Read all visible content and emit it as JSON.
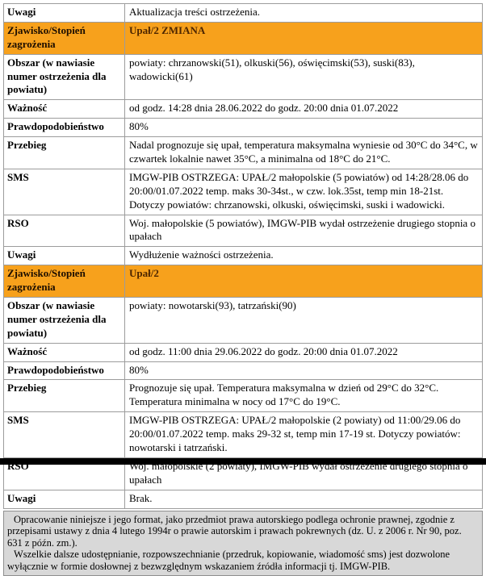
{
  "table": {
    "rows": [
      {
        "style": "normal",
        "label": "Uwagi",
        "value": "Aktualizacja treści ostrzeżenia."
      },
      {
        "style": "alert",
        "label": "Zjawisko/Stopień zagrożenia",
        "value": "Upał/2 ZMIANA"
      },
      {
        "style": "normal",
        "label": "Obszar (w nawiasie numer ostrzeżenia dla powiatu)",
        "value": "powiaty: chrzanowski(51), olkuski(56), oświęcimski(53), suski(83), wadowicki(61)"
      },
      {
        "style": "normal",
        "label": "Ważność",
        "value": "od godz. 14:28 dnia 28.06.2022 do godz. 20:00 dnia 01.07.2022"
      },
      {
        "style": "normal",
        "label": "Prawdopodobieństwo",
        "value": "80%"
      },
      {
        "style": "normal",
        "label": "Przebieg",
        "value": "Nadal prognozuje się upał, temperatura maksymalna wyniesie od 30°C do 34°C, w czwartek lokalnie nawet 35°C, a minimalna od 18°C do 21°C."
      },
      {
        "style": "normal",
        "label": "SMS",
        "value": "IMGW-PIB OSTRZEGA: UPAŁ/2 małopolskie (5 powiatów) od 14:28/28.06 do 20:00/01.07.2022 temp. maks 30-34st., w czw. lok.35st, temp min 18-21st. Dotyczy powiatów: chrzanowski, olkuski, oświęcimski, suski i wadowicki."
      },
      {
        "style": "normal",
        "label": "RSO",
        "value": "Woj. małopolskie (5 powiatów), IMGW-PIB wydał ostrzeżenie drugiego stopnia o upałach"
      },
      {
        "style": "normal",
        "label": "Uwagi",
        "value": "Wydłużenie ważności ostrzeżenia."
      },
      {
        "style": "alert",
        "label": "Zjawisko/Stopień zagrożenia",
        "value": "Upał/2"
      },
      {
        "style": "normal",
        "label": "Obszar (w nawiasie numer ostrzeżenia dla powiatu)",
        "value": "powiaty: nowotarski(93), tatrzański(90)"
      },
      {
        "style": "normal",
        "label": "Ważność",
        "value": "od godz. 11:00 dnia 29.06.2022 do godz. 20:00 dnia 01.07.2022"
      },
      {
        "style": "normal",
        "label": "Prawdopodobieństwo",
        "value": "80%"
      },
      {
        "style": "normal",
        "label": "Przebieg",
        "value": "Prognozuje się upał. Temperatura maksymalna w dzień od 29°C do 32°C. Temperatura minimalna w nocy od 17°C do 19°C."
      },
      {
        "style": "normal",
        "label": "SMS",
        "value": "IMGW-PIB OSTRZEGA: UPAŁ/2 małopolskie (2 powiaty) od 11:00/29.06 do 20:00/01.07.2022 temp. maks 29-32 st, temp min 17-19 st. Dotyczy powiatów: nowotarski i tatrzański."
      },
      {
        "style": "normal",
        "label": "RSO",
        "value": "Woj. małopolskie (2 powiaty), IMGW-PIB wydał ostrzeżenie drugiego stopnia o upałach"
      },
      {
        "style": "normal",
        "label": "Uwagi",
        "value": "Brak."
      }
    ]
  },
  "footer": {
    "paragraphs": [
      "Opracowanie niniejsze i jego format, jako przedmiot prawa autorskiego podlega ochronie prawnej, zgodnie z przepisami ustawy z dnia 4 lutego 1994r o prawie autorskim i prawach pokrewnych (dz. U. z 2006 r. Nr 90, poz. 631 z późn. zm.).",
      "Wszelkie dalsze udostępnianie, rozpowszechnianie (przedruk, kopiowanie, wiadomość sms) jest dozwolone wyłącznie w formie dosłownej z bezwzględnym wskazaniem źródła informacji tj. IMGW-PIB."
    ]
  },
  "colors": {
    "alert_orange": "#f7a11c",
    "alert_text": "#4d2600",
    "footer_bg": "#d8d8d8",
    "border_gray": "#9c9c9c",
    "separator_black": "#000000"
  }
}
